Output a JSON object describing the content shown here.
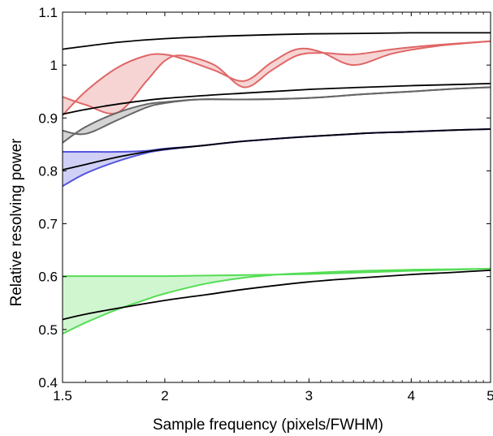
{
  "chart_data": {
    "type": "line",
    "xlabel": "Sample frequency  (pixels/FWHM)",
    "ylabel": "Relative resolving power",
    "xscale": "log",
    "xlim": [
      1.5,
      5
    ],
    "ylim": [
      0.4,
      1.1
    ],
    "xticks": [
      1.5,
      2,
      3,
      4,
      5
    ],
    "xtick_labels": [
      "1.5",
      "2",
      "3",
      "4",
      "5"
    ],
    "yticks": [
      0.4,
      0.5,
      0.6,
      0.7,
      0.8,
      0.9,
      1.0,
      1.1
    ],
    "ytick_labels": [
      "0.4",
      "0.5",
      "0.6",
      "0.7",
      "0.8",
      "0.9",
      "1",
      "1.1"
    ],
    "grid": false,
    "legend": "none",
    "bands": [
      {
        "color": "#e06666",
        "upper": {
          "x": [
            1.5,
            1.6,
            1.75,
            1.9,
            2.0,
            2.1,
            2.3,
            2.5,
            2.7,
            2.9,
            3.1,
            3.4,
            3.8,
            4.3,
            5.0
          ],
          "y": [
            0.94,
            0.925,
            0.91,
            0.97,
            1.008,
            1.018,
            1.0,
            0.958,
            0.99,
            1.018,
            1.023,
            1.02,
            1.03,
            1.038,
            1.045
          ]
        },
        "lower": {
          "x": [
            1.5,
            1.6,
            1.75,
            1.9,
            2.0,
            2.1,
            2.3,
            2.5,
            2.7,
            2.9,
            3.1,
            3.4,
            3.8,
            4.3,
            5.0
          ],
          "y": [
            0.905,
            0.95,
            0.995,
            1.018,
            1.02,
            1.012,
            0.99,
            0.97,
            1.005,
            1.03,
            1.025,
            1.0,
            1.022,
            1.036,
            1.045
          ]
        }
      },
      {
        "color": "#666666",
        "upper": {
          "x": [
            1.5,
            1.6,
            1.75,
            1.9,
            2.0,
            2.2,
            2.5,
            2.8,
            3.1,
            3.5,
            4.0,
            4.5,
            5.0
          ],
          "y": [
            0.876,
            0.87,
            0.896,
            0.92,
            0.928,
            0.935,
            0.935,
            0.936,
            0.939,
            0.945,
            0.95,
            0.955,
            0.958
          ]
        },
        "lower": {
          "x": [
            1.5,
            1.6,
            1.75,
            1.9,
            2.0,
            2.2,
            2.5,
            2.8,
            3.1,
            3.5,
            4.0,
            4.5,
            5.0
          ],
          "y": [
            0.853,
            0.883,
            0.91,
            0.926,
            0.93,
            0.935,
            0.935,
            0.936,
            0.939,
            0.945,
            0.95,
            0.955,
            0.958
          ]
        }
      },
      {
        "color": "#5555dd",
        "upper": {
          "x": [
            1.5,
            1.6,
            1.75,
            1.9,
            2.0,
            2.2,
            2.5,
            3.0,
            3.5,
            4.0,
            4.5,
            5.0
          ],
          "y": [
            0.836,
            0.836,
            0.836,
            0.838,
            0.842,
            0.847,
            0.856,
            0.865,
            0.871,
            0.874,
            0.877,
            0.879
          ]
        },
        "lower": {
          "x": [
            1.5,
            1.6,
            1.75,
            1.9,
            2.0,
            2.2,
            2.5,
            3.0,
            3.5,
            4.0,
            4.5,
            5.0
          ],
          "y": [
            0.771,
            0.795,
            0.818,
            0.834,
            0.84,
            0.847,
            0.856,
            0.865,
            0.871,
            0.874,
            0.877,
            0.879
          ]
        }
      },
      {
        "color": "#55dd55",
        "upper": {
          "x": [
            1.5,
            1.75,
            2.0,
            2.25,
            2.5,
            2.75,
            3.0,
            3.5,
            4.0,
            4.5,
            5.0
          ],
          "y": [
            0.601,
            0.601,
            0.601,
            0.602,
            0.603,
            0.604,
            0.605,
            0.608,
            0.611,
            0.613,
            0.615
          ]
        },
        "lower": {
          "x": [
            1.5,
            1.6,
            1.75,
            1.9,
            2.0,
            2.25,
            2.5,
            2.75,
            3.0,
            3.5,
            4.0,
            4.5,
            5.0
          ],
          "y": [
            0.492,
            0.513,
            0.538,
            0.557,
            0.568,
            0.587,
            0.598,
            0.604,
            0.607,
            0.611,
            0.613,
            0.614,
            0.615
          ]
        }
      }
    ],
    "series": [
      {
        "color": "#000000",
        "x": [
          1.5,
          1.75,
          2.0,
          2.5,
          3.0,
          3.5,
          4.0,
          4.5,
          5.0
        ],
        "y": [
          1.03,
          1.043,
          1.05,
          1.056,
          1.059,
          1.06,
          1.061,
          1.061,
          1.061
        ]
      },
      {
        "color": "#000000",
        "x": [
          1.5,
          1.6,
          1.75,
          2.0,
          2.5,
          3.0,
          3.5,
          4.0,
          4.5,
          5.0
        ],
        "y": [
          0.907,
          0.916,
          0.926,
          0.937,
          0.947,
          0.954,
          0.958,
          0.961,
          0.963,
          0.965
        ]
      },
      {
        "color": "#000000",
        "x": [
          1.5,
          1.6,
          1.75,
          1.9,
          2.0,
          2.2,
          2.5,
          3.0,
          3.5,
          4.0,
          4.5,
          5.0
        ],
        "y": [
          0.802,
          0.812,
          0.826,
          0.836,
          0.841,
          0.847,
          0.856,
          0.865,
          0.871,
          0.874,
          0.877,
          0.879
        ]
      },
      {
        "color": "#000000",
        "x": [
          1.5,
          1.6,
          1.75,
          2.0,
          2.25,
          2.5,
          3.0,
          3.5,
          4.0,
          4.5,
          5.0
        ],
        "y": [
          0.519,
          0.529,
          0.54,
          0.555,
          0.566,
          0.576,
          0.59,
          0.598,
          0.604,
          0.608,
          0.612
        ]
      }
    ]
  }
}
